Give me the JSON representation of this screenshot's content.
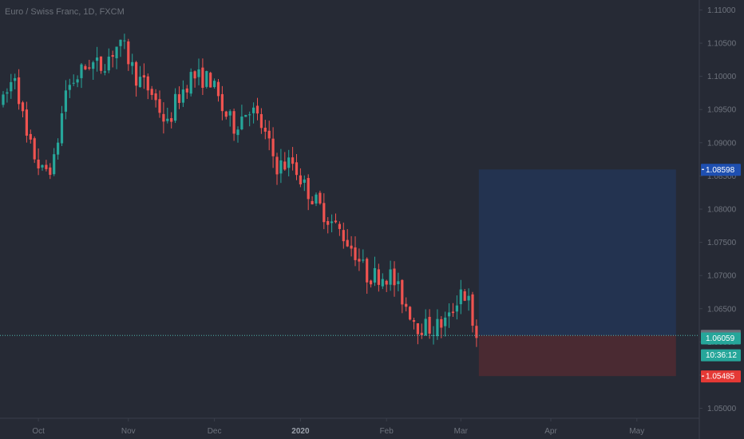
{
  "header": {
    "title": "Euro / Swiss Franc, 1D, FXCM"
  },
  "colors": {
    "background": "#262a35",
    "up": "#26a69a",
    "down": "#ef5350",
    "target_zone": "#233350",
    "stop_zone": "#4a2a32",
    "axis_text": "#6f747e",
    "price_line": "#4fb3ac"
  },
  "chart_data": {
    "type": "candlestick",
    "title": "Euro / Swiss Franc, 1D, FXCM",
    "y_axis": {
      "position": "right",
      "range": [
        1.0485,
        1.1115
      ],
      "ticks": [
        "1.11000",
        "1.10500",
        "1.10000",
        "1.09500",
        "1.09000",
        "1.08500",
        "1.08000",
        "1.07500",
        "1.07000",
        "1.06500",
        "1.06000",
        "1.05500",
        "1.05000"
      ]
    },
    "x_axis": {
      "tick_labels": [
        {
          "label": "Oct",
          "index": 9
        },
        {
          "label": "Nov",
          "index": 32
        },
        {
          "label": "Dec",
          "index": 54
        },
        {
          "label": "2020",
          "index": 76,
          "bold": true
        },
        {
          "label": "Feb",
          "index": 98
        },
        {
          "label": "Mar",
          "index": 117
        },
        {
          "label": "Apr",
          "index": 140
        },
        {
          "label": "May",
          "index": 162
        }
      ]
    },
    "anchors": [
      [
        0,
        1.096
      ],
      [
        3,
        1.1005
      ],
      [
        6,
        1.0905
      ],
      [
        10,
        1.0855
      ],
      [
        13,
        1.087
      ],
      [
        16,
        1.098
      ],
      [
        19,
        1.1
      ],
      [
        22,
        1.102
      ],
      [
        25,
        1.1015
      ],
      [
        29,
        1.1045
      ],
      [
        31,
        1.104
      ],
      [
        34,
        1.1
      ],
      [
        38,
        1.0975
      ],
      [
        42,
        1.0925
      ],
      [
        44,
        1.096
      ],
      [
        48,
        1.1
      ],
      [
        53,
        1.0995
      ],
      [
        56,
        1.095
      ],
      [
        59,
        1.0925
      ],
      [
        63,
        1.0955
      ],
      [
        66,
        1.0925
      ],
      [
        70,
        1.0865
      ],
      [
        74,
        1.087
      ],
      [
        77,
        1.0835
      ],
      [
        80,
        1.081
      ],
      [
        84,
        1.078
      ],
      [
        87,
        1.076
      ],
      [
        90,
        1.0735
      ],
      [
        93,
        1.07
      ],
      [
        96,
        1.07
      ],
      [
        99,
        1.07
      ],
      [
        103,
        1.0655
      ],
      [
        106,
        1.0625
      ],
      [
        110,
        1.062
      ],
      [
        114,
        1.0635
      ],
      [
        117,
        1.068
      ],
      [
        119,
        1.066
      ],
      [
        121,
        1.057
      ]
    ],
    "position": {
      "entry": 1.06098,
      "target": 1.08598,
      "stop": 1.05485,
      "start_index": 122,
      "end_index": 172
    },
    "price_labels": [
      {
        "name": "target-price-label",
        "value": "1.08598",
        "price": 1.08598
      },
      {
        "name": "entry-price-label",
        "value": "1.06098",
        "price": 1.06098
      },
      {
        "name": "last-price-label",
        "value": "1.06059",
        "price": 1.06059
      },
      {
        "name": "countdown-label",
        "value": "10:36:12",
        "price": 1.05805
      },
      {
        "name": "stop-price-label",
        "value": "1.05485",
        "price": 1.05485
      }
    ]
  }
}
